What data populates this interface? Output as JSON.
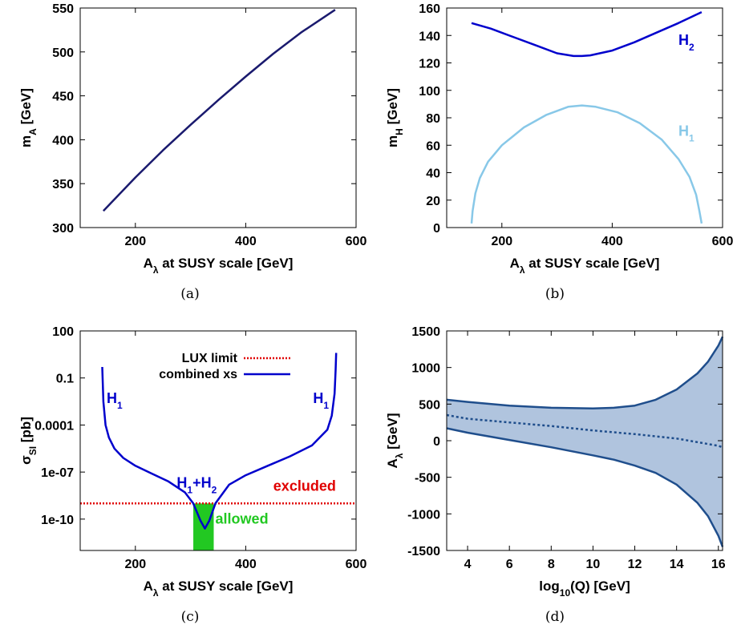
{
  "chart_data": [
    {
      "type": "line",
      "panel_label": "(a)",
      "xlabel": "A",
      "xlabel_sub": "λ",
      "xlabel_rest": " at SUSY scale [GeV]",
      "ylabel": "m",
      "ylabel_sub": "A",
      "ylabel_rest": " [GeV]",
      "xlim": [
        100,
        600
      ],
      "ylim": [
        300,
        550
      ],
      "xticks": [
        200,
        400,
        600
      ],
      "yticks": [
        300,
        350,
        400,
        450,
        500,
        550
      ],
      "series": [
        {
          "color": "#1a1a6e",
          "x": [
            142,
            200,
            250,
            300,
            350,
            400,
            450,
            500,
            562
          ],
          "y": [
            319,
            357,
            388,
            417,
            445,
            472,
            498,
            522,
            548
          ]
        }
      ]
    },
    {
      "type": "line",
      "panel_label": "(b)",
      "xlabel": "A",
      "xlabel_sub": "λ",
      "xlabel_rest": " at SUSY scale [GeV]",
      "ylabel": "m",
      "ylabel_sub": "H",
      "ylabel_rest": " [GeV]",
      "xlim": [
        100,
        600
      ],
      "ylim": [
        0,
        160
      ],
      "xticks": [
        200,
        400,
        600
      ],
      "yticks": [
        0,
        20,
        40,
        60,
        80,
        100,
        120,
        140,
        160
      ],
      "annotations": [
        {
          "text": "H",
          "sub": "2",
          "color": "#0000cc",
          "x": 520,
          "y": 133
        },
        {
          "text": "H",
          "sub": "1",
          "color": "#88c8e8",
          "x": 520,
          "y": 67
        }
      ],
      "series": [
        {
          "name": "H2",
          "color": "#0000cc",
          "x": [
            145,
            180,
            220,
            260,
            300,
            330,
            345,
            360,
            400,
            440,
            480,
            520,
            562
          ],
          "y": [
            149,
            145,
            139,
            133,
            127,
            125,
            125,
            125.5,
            129,
            135,
            142,
            149,
            157
          ]
        },
        {
          "name": "H1",
          "color": "#88c8e8",
          "x": [
            145,
            147,
            152,
            160,
            175,
            200,
            240,
            280,
            320,
            345,
            370,
            410,
            450,
            490,
            520,
            540,
            552,
            558,
            562
          ],
          "y": [
            3,
            12,
            25,
            36,
            48,
            60,
            73,
            82,
            88,
            89,
            88,
            84,
            76,
            64,
            50,
            37,
            24,
            12,
            3
          ]
        }
      ]
    },
    {
      "type": "line",
      "panel_label": "(c)",
      "xlabel": "A",
      "xlabel_sub": "λ",
      "xlabel_rest": " at SUSY scale [GeV]",
      "ylabel": "σ",
      "ylabel_sub": "SI",
      "ylabel_rest": " [pb]",
      "xlim": [
        100,
        600
      ],
      "ylog": true,
      "ylim_exp": [
        -12,
        2
      ],
      "xticks": [
        200,
        400,
        600
      ],
      "ytick_exps": [
        2,
        -1,
        -4,
        -7,
        -10
      ],
      "ytick_labels": [
        "100",
        "0.1",
        "0.0001",
        "1e-07",
        "1e-10"
      ],
      "legend": [
        {
          "label": "LUX limit",
          "color": "#e00000",
          "dashed": true
        },
        {
          "label": "combined xs",
          "color": "#0000cc",
          "dashed": false
        }
      ],
      "lux_limit_exp": -9,
      "allowed_region_x": [
        305,
        342
      ],
      "annotations": [
        {
          "text": "H",
          "sub": "1",
          "color": "#0000cc",
          "x": 148,
          "y_exp": -2.6
        },
        {
          "text": "H",
          "sub": "1",
          "color": "#0000cc",
          "x": 522,
          "y_exp": -2.6
        },
        {
          "text": "H",
          "sub": "1",
          "text2": "+H",
          "sub2": "2",
          "color": "#0000cc",
          "x": 275,
          "y_exp": -8.0
        },
        {
          "text": "excluded",
          "color": "#e00000",
          "x": 450,
          "y_exp": -8.2
        },
        {
          "text": "allowed",
          "color": "#22c822",
          "x": 345,
          "y_exp": -10.3
        }
      ],
      "series": [
        {
          "name": "combined xs",
          "color": "#0000cc",
          "x": [
            140,
            142,
            146,
            152,
            162,
            178,
            200,
            230,
            260,
            290,
            305,
            318,
            326,
            334,
            345,
            370,
            400,
            440,
            480,
            520,
            548,
            556,
            561,
            563,
            564
          ],
          "y_exp": [
            -0.3,
            -2.5,
            -4.0,
            -4.8,
            -5.5,
            -6.1,
            -6.6,
            -7.1,
            -7.6,
            -8.3,
            -9.0,
            -10.1,
            -10.6,
            -10.1,
            -9.0,
            -7.8,
            -7.2,
            -6.6,
            -6.0,
            -5.3,
            -4.3,
            -3.4,
            -2.0,
            -0.5,
            0.6
          ]
        }
      ]
    },
    {
      "type": "area",
      "panel_label": "(d)",
      "xlabel": "log",
      "xlabel_sub": "10",
      "xlabel_rest": "(Q) [GeV]",
      "ylabel": "A",
      "ylabel_sub": "λ",
      "ylabel_rest": " [GeV]",
      "xlim": [
        3,
        16.2
      ],
      "ylim": [
        -1500,
        1500
      ],
      "xticks": [
        4,
        6,
        8,
        10,
        12,
        14,
        16
      ],
      "yticks": [
        -1500,
        -1000,
        -500,
        0,
        500,
        1000,
        1500
      ],
      "fill_color": "#b0c4de",
      "series": [
        {
          "name": "upper",
          "color": "#1f4e8c",
          "x": [
            3,
            4,
            6,
            8,
            10,
            11,
            12,
            13,
            14,
            15,
            15.5,
            16,
            16.2
          ],
          "y": [
            560,
            530,
            480,
            450,
            440,
            450,
            480,
            560,
            700,
            920,
            1080,
            1300,
            1420
          ]
        },
        {
          "name": "central",
          "color": "#1f4e8c",
          "dashed": true,
          "x": [
            3,
            4,
            6,
            8,
            10,
            12,
            14,
            15,
            16,
            16.2
          ],
          "y": [
            350,
            300,
            250,
            200,
            140,
            90,
            30,
            -20,
            -70,
            -90
          ]
        },
        {
          "name": "lower",
          "color": "#1f4e8c",
          "x": [
            3,
            4,
            6,
            8,
            10,
            11,
            12,
            13,
            14,
            15,
            15.5,
            16,
            16.2
          ],
          "y": [
            170,
            110,
            10,
            -90,
            -200,
            -260,
            -340,
            -440,
            -600,
            -850,
            -1030,
            -1300,
            -1450
          ]
        }
      ]
    }
  ]
}
